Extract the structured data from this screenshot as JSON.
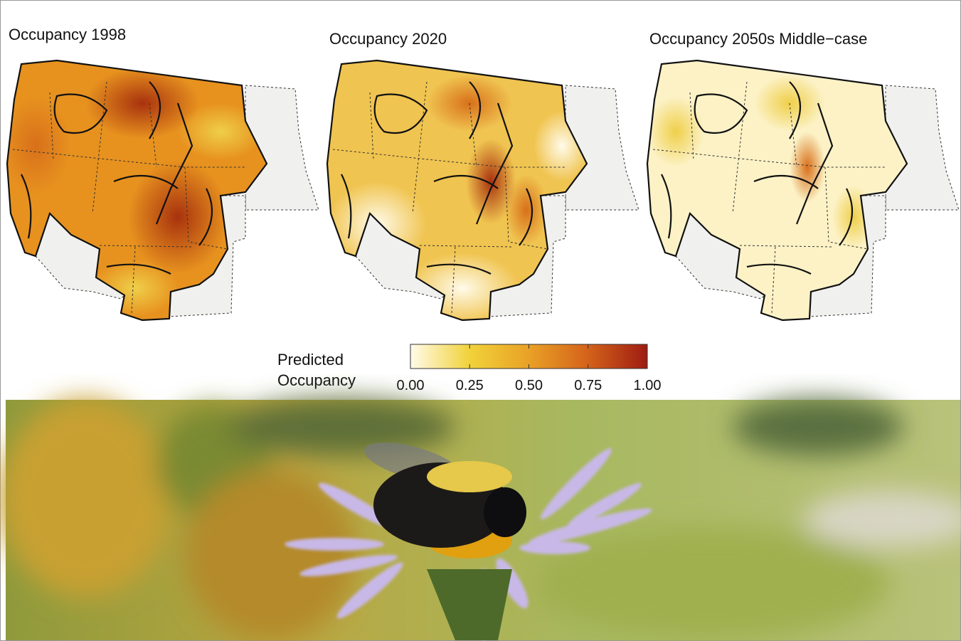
{
  "maps": [
    {
      "title": "Occupancy 1998"
    },
    {
      "title": "Occupancy 2020"
    },
    {
      "title": "Occupancy 2050s Middle−case"
    }
  ],
  "colorbar": {
    "label": [
      "Predicted",
      "Occupancy"
    ],
    "lim": [
      0,
      1
    ],
    "ticks": [
      {
        "value": 0,
        "label": "0.00"
      },
      {
        "value": 0.25,
        "label": "0.25"
      },
      {
        "value": 0.5,
        "label": "0.50"
      },
      {
        "value": 0.75,
        "label": "0.75"
      },
      {
        "value": 1,
        "label": "1.00"
      }
    ]
  }
}
